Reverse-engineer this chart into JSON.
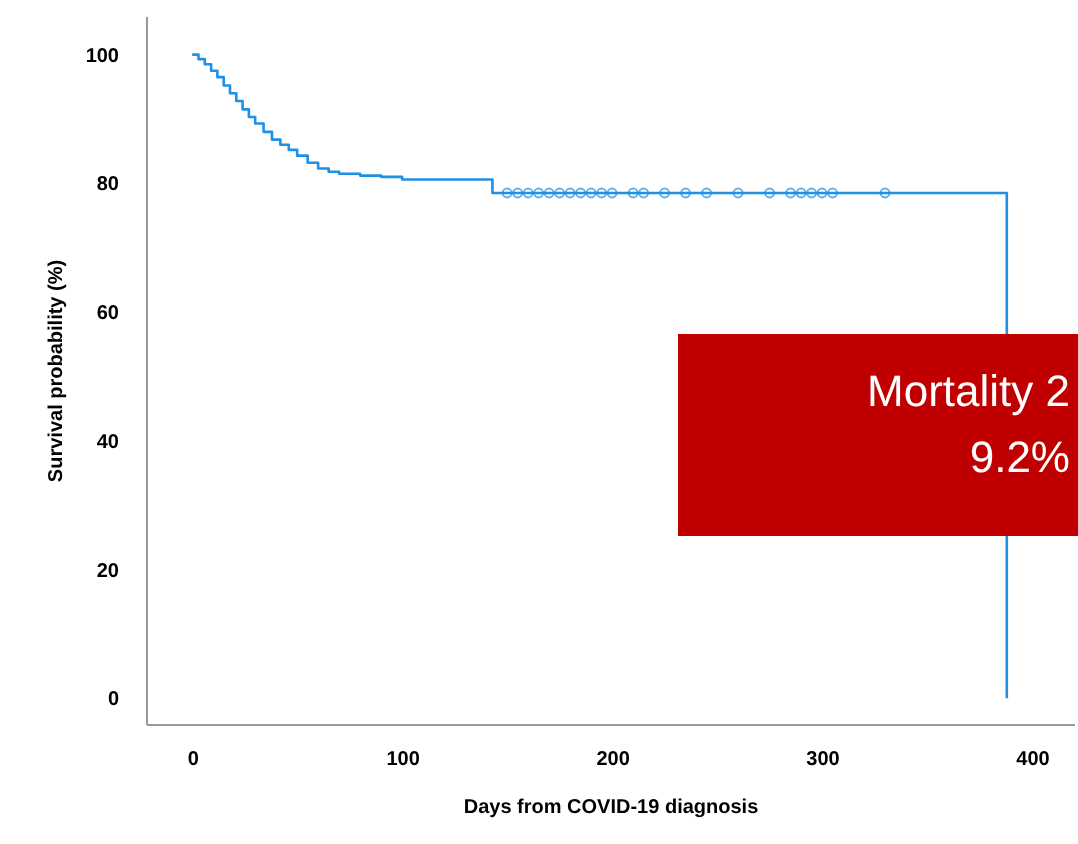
{
  "chart_data": {
    "type": "step",
    "xlabel": "Days from COVID-19 diagnosis",
    "ylabel": "Survival probability (%)",
    "xlim": [
      -22,
      420
    ],
    "ylim": [
      -4,
      106
    ],
    "xticks": [
      0,
      100,
      200,
      300,
      400
    ],
    "yticks": [
      0,
      20,
      40,
      60,
      80,
      100
    ],
    "grid": false,
    "line_style": "solid",
    "series": [
      {
        "color": "#1e90e6",
        "marker": "none",
        "x": [
          0,
          3,
          6,
          9,
          12,
          15,
          18,
          21,
          24,
          27,
          30,
          34,
          38,
          42,
          46,
          50,
          55,
          60,
          65,
          70,
          80,
          90,
          100,
          120,
          140,
          143,
          200,
          300,
          388,
          388
        ],
        "values": [
          100,
          99.3,
          98.5,
          97.5,
          96.5,
          95.2,
          94,
          92.8,
          91.5,
          90.3,
          89.3,
          88,
          86.8,
          86,
          85.2,
          84.3,
          83.2,
          82.3,
          81.8,
          81.5,
          81.2,
          81,
          80.6,
          80.6,
          80.6,
          78.5,
          78.5,
          78.5,
          78.5,
          0
        ]
      },
      {
        "type": "scatter",
        "color": "#1e90e6",
        "marker": "circle",
        "x": [
          150,
          155,
          160,
          165,
          170,
          175,
          180,
          185,
          190,
          195,
          200,
          210,
          215,
          225,
          235,
          245,
          260,
          275,
          285,
          290,
          295,
          300,
          305,
          330
        ],
        "values": [
          78.5,
          78.5,
          78.5,
          78.5,
          78.5,
          78.5,
          78.5,
          78.5,
          78.5,
          78.5,
          78.5,
          78.5,
          78.5,
          78.5,
          78.5,
          78.5,
          78.5,
          78.5,
          78.5,
          78.5,
          78.5,
          78.5,
          78.5,
          78.5
        ]
      }
    ],
    "annotations": [
      "Mortality 2",
      "9.2%"
    ]
  }
}
